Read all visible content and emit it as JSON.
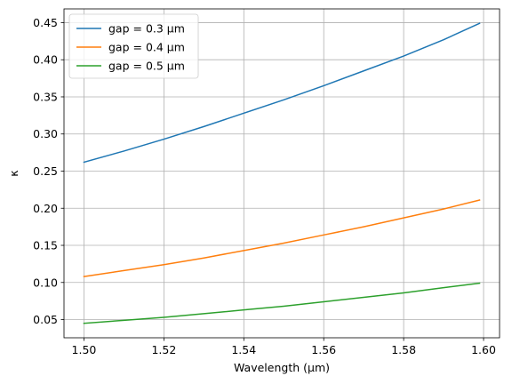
{
  "chart_data": {
    "type": "line",
    "title": "",
    "xlabel": "Wavelength (µm)",
    "ylabel": "κ",
    "xlim": [
      1.495,
      1.604
    ],
    "ylim": [
      0.0255,
      0.4685
    ],
    "x_ticks": [
      1.5,
      1.52,
      1.54,
      1.56,
      1.58,
      1.6
    ],
    "x_tick_labels": [
      "1.50",
      "1.52",
      "1.54",
      "1.56",
      "1.58",
      "1.60"
    ],
    "y_ticks": [
      0.05,
      0.1,
      0.15,
      0.2,
      0.25,
      0.3,
      0.35,
      0.4,
      0.45
    ],
    "y_tick_labels": [
      "0.05",
      "0.10",
      "0.15",
      "0.20",
      "0.25",
      "0.30",
      "0.35",
      "0.40",
      "0.45"
    ],
    "grid": true,
    "legend_position": "top-left",
    "x": [
      1.5,
      1.51,
      1.52,
      1.53,
      1.54,
      1.55,
      1.56,
      1.57,
      1.58,
      1.59,
      1.599
    ],
    "series": [
      {
        "name": "gap = 0.3 µm",
        "color": "#1f77b4",
        "values": [
          0.262,
          0.277,
          0.293,
          0.31,
          0.328,
          0.346,
          0.365,
          0.385,
          0.405,
          0.427,
          0.449
        ]
      },
      {
        "name": "gap = 0.4 µm",
        "color": "#ff7f0e",
        "values": [
          0.108,
          0.116,
          0.124,
          0.133,
          0.143,
          0.153,
          0.164,
          0.175,
          0.187,
          0.199,
          0.211
        ]
      },
      {
        "name": "gap = 0.5 µm",
        "color": "#2ca02c",
        "values": [
          0.045,
          0.049,
          0.053,
          0.058,
          0.063,
          0.068,
          0.074,
          0.08,
          0.086,
          0.093,
          0.099
        ]
      }
    ]
  }
}
